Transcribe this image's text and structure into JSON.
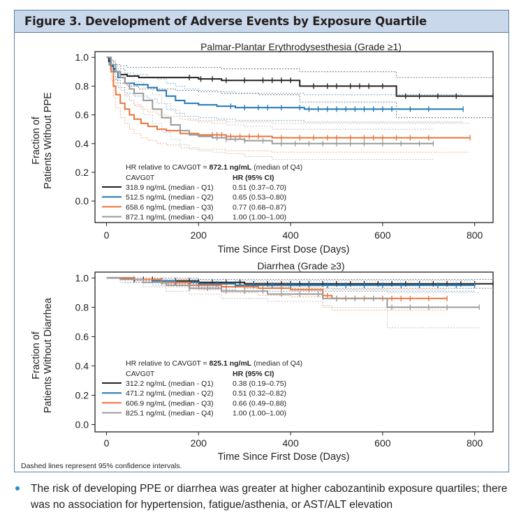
{
  "figure": {
    "title": "Figure 3. Development of Adverse Events by Exposure Quartile",
    "footnote": "Dashed lines represent 95% confidence intervals."
  },
  "summary": {
    "bullet": "The risk of developing PPE or diarrhea was greater at higher cabozantinib exposure quartiles; there was no association for hypertension, fatigue/asthenia, or AST/ALT elevation"
  },
  "colors": {
    "Q1": "#231f20",
    "Q2": "#1f77b4",
    "Q3": "#e8743b",
    "Q4": "#9a9a9a",
    "header_bg": "#c9d8ea",
    "bullet": "#1f8fce"
  },
  "chart_data": [
    {
      "type": "line",
      "title": "Palmar-Plantar Erythrodysesthesia (Grade ≥1)",
      "xlabel": "Time Since First Dose (Days)",
      "ylabel": "Fraction of Patients Without PPE",
      "xlim": [
        -25,
        840
      ],
      "ylim": [
        -0.15,
        1.04
      ],
      "xticks": [
        0,
        200,
        400,
        600,
        800
      ],
      "yticks": [
        0.0,
        0.2,
        0.4,
        0.6,
        0.8,
        1.0
      ],
      "grid": false,
      "legend": {
        "placement": "bottom-left",
        "ref_prefix": "HR relative to CAVG0T = ",
        "ref_value": "872.1 ng/mL",
        "ref_suffix": " (median of Q4)",
        "col1_header": "CAVG0T",
        "col2_header": "HR (95% CI)"
      },
      "series": [
        {
          "key": "Q1",
          "name": "318.9 ng/mL (median - Q1)",
          "hr": "0.51 (0.37–0.70)",
          "x": [
            0,
            5,
            10,
            15,
            20,
            30,
            45,
            70,
            100,
            150,
            200,
            250,
            330,
            400,
            420,
            630,
            840
          ],
          "y": [
            1.0,
            0.97,
            0.94,
            0.92,
            0.9,
            0.88,
            0.87,
            0.86,
            0.86,
            0.86,
            0.85,
            0.84,
            0.84,
            0.84,
            0.8,
            0.73,
            0.73
          ],
          "lo": [
            1.0,
            0.94,
            0.9,
            0.87,
            0.84,
            0.82,
            0.8,
            0.78,
            0.78,
            0.77,
            0.76,
            0.75,
            0.74,
            0.74,
            0.69,
            0.58,
            0.58
          ],
          "hi": [
            1.0,
            0.99,
            0.98,
            0.97,
            0.95,
            0.94,
            0.93,
            0.93,
            0.93,
            0.93,
            0.93,
            0.92,
            0.92,
            0.92,
            0.9,
            0.86,
            0.86
          ],
          "censor_x": [
            180,
            205,
            230,
            260,
            300,
            340,
            360,
            380,
            400,
            450,
            480,
            500,
            530,
            550,
            570,
            600,
            650,
            680,
            720,
            760,
            840
          ]
        },
        {
          "key": "Q2",
          "name": "512.5 ng/mL (median - Q2)",
          "hr": "0.65 (0.53–0.80)",
          "x": [
            0,
            8,
            15,
            25,
            40,
            60,
            90,
            110,
            130,
            150,
            170,
            200,
            240,
            280,
            430,
            775
          ],
          "y": [
            1.0,
            0.95,
            0.9,
            0.86,
            0.82,
            0.81,
            0.79,
            0.77,
            0.73,
            0.7,
            0.68,
            0.67,
            0.66,
            0.65,
            0.64,
            0.64
          ],
          "lo": [
            1.0,
            0.91,
            0.85,
            0.79,
            0.75,
            0.73,
            0.71,
            0.68,
            0.64,
            0.61,
            0.59,
            0.58,
            0.57,
            0.56,
            0.55,
            0.55
          ],
          "hi": [
            1.0,
            0.98,
            0.95,
            0.92,
            0.89,
            0.88,
            0.86,
            0.85,
            0.82,
            0.8,
            0.78,
            0.77,
            0.76,
            0.75,
            0.74,
            0.74
          ],
          "censor_x": [
            270,
            300,
            330,
            350,
            380,
            420,
            440,
            460,
            480,
            500,
            520,
            540,
            560,
            580,
            600,
            620,
            660,
            700,
            775
          ]
        },
        {
          "key": "Q3",
          "name": "658.6 ng/mL (median - Q3)",
          "hr": "0.77 (0.68–0.87)",
          "x": [
            0,
            10,
            15,
            20,
            30,
            40,
            50,
            60,
            75,
            90,
            110,
            130,
            160,
            200,
            260,
            300,
            360,
            790
          ],
          "y": [
            1.0,
            0.9,
            0.8,
            0.74,
            0.68,
            0.64,
            0.6,
            0.57,
            0.54,
            0.52,
            0.5,
            0.49,
            0.47,
            0.46,
            0.45,
            0.45,
            0.44,
            0.44
          ],
          "lo": [
            1.0,
            0.84,
            0.72,
            0.65,
            0.58,
            0.54,
            0.5,
            0.47,
            0.44,
            0.42,
            0.4,
            0.39,
            0.37,
            0.36,
            0.35,
            0.35,
            0.34,
            0.34
          ],
          "hi": [
            1.0,
            0.95,
            0.87,
            0.82,
            0.77,
            0.73,
            0.7,
            0.67,
            0.64,
            0.62,
            0.6,
            0.59,
            0.57,
            0.56,
            0.55,
            0.55,
            0.54,
            0.54
          ],
          "censor_x": [
            230,
            240,
            250,
            270,
            290,
            310,
            330,
            380,
            420,
            450,
            480,
            500,
            530,
            560,
            580,
            600,
            630,
            660,
            700,
            790
          ]
        },
        {
          "key": "Q4",
          "name": "872.1 ng/mL (median - Q4)",
          "hr": "1.00 (1.00–1.00)",
          "x": [
            0,
            10,
            20,
            30,
            40,
            50,
            60,
            80,
            100,
            120,
            140,
            160,
            180,
            200,
            230,
            260,
            300,
            360,
            710
          ],
          "y": [
            1.0,
            0.95,
            0.9,
            0.86,
            0.82,
            0.78,
            0.75,
            0.7,
            0.64,
            0.58,
            0.53,
            0.49,
            0.46,
            0.45,
            0.44,
            0.43,
            0.42,
            0.4,
            0.4
          ],
          "lo": [
            1.0,
            0.91,
            0.84,
            0.79,
            0.74,
            0.7,
            0.66,
            0.6,
            0.54,
            0.48,
            0.43,
            0.39,
            0.36,
            0.35,
            0.34,
            0.33,
            0.31,
            0.29,
            0.29
          ],
          "hi": [
            1.0,
            0.98,
            0.95,
            0.92,
            0.89,
            0.86,
            0.83,
            0.79,
            0.74,
            0.68,
            0.63,
            0.59,
            0.56,
            0.55,
            0.54,
            0.53,
            0.52,
            0.5,
            0.5
          ],
          "censor_x": [
            240,
            260,
            280,
            300,
            340,
            380,
            410,
            440,
            470,
            500,
            530,
            560,
            600,
            640,
            680,
            710
          ]
        }
      ]
    },
    {
      "type": "line",
      "title": "Diarrhea (Grade ≥3)",
      "xlabel": "Time Since First Dose (Days)",
      "ylabel": "Fraction of Patients Without Diarrhea",
      "xlim": [
        -25,
        840
      ],
      "ylim": [
        -0.05,
        1.04
      ],
      "xticks": [
        0,
        200,
        400,
        600,
        800
      ],
      "yticks": [
        0.0,
        0.2,
        0.4,
        0.6,
        0.8,
        1.0
      ],
      "grid": false,
      "legend": {
        "placement": "bottom-left",
        "ref_prefix": "HR relative to CAVG0T = ",
        "ref_value": "825.1 ng/mL",
        "ref_suffix": " (median of Q4)",
        "col1_header": "CAVG0T",
        "col2_header": "HR (95% CI)"
      },
      "series": [
        {
          "key": "Q1",
          "name": "312.2 ng/mL (median - Q1)",
          "hr": "0.38 (0.19–0.75)",
          "x": [
            0,
            60,
            120,
            200,
            300,
            840
          ],
          "y": [
            1.0,
            0.99,
            0.98,
            0.97,
            0.96,
            0.96
          ],
          "lo": [
            1.0,
            0.98,
            0.96,
            0.94,
            0.93,
            0.93
          ],
          "hi": [
            1.0,
            1.0,
            1.0,
            0.99,
            0.99,
            0.99
          ],
          "censor_x": [
            60,
            80,
            100,
            120,
            150,
            180,
            200,
            230,
            260,
            290,
            320,
            350,
            380,
            400,
            420,
            440,
            470,
            500,
            530,
            560,
            590,
            620,
            650,
            680,
            710,
            740,
            770,
            800,
            840
          ]
        },
        {
          "key": "Q2",
          "name": "471.2 ng/mL (median - Q2)",
          "hr": "0.51 (0.32–0.82)",
          "x": [
            0,
            40,
            100,
            150,
            200,
            280,
            800
          ],
          "y": [
            1.0,
            0.99,
            0.98,
            0.97,
            0.96,
            0.95,
            0.95
          ],
          "lo": [
            1.0,
            0.97,
            0.95,
            0.94,
            0.92,
            0.91,
            0.91
          ],
          "hi": [
            1.0,
            1.0,
            1.0,
            0.99,
            0.99,
            0.98,
            0.98
          ],
          "censor_x": [
            150,
            200,
            240,
            280,
            320,
            360,
            400,
            440,
            480,
            520,
            560,
            600,
            640,
            680,
            720,
            760,
            800
          ]
        },
        {
          "key": "Q3",
          "name": "606.9 ng/mL (median - Q3)",
          "hr": "0.66 (0.49–0.88)",
          "x": [
            0,
            60,
            120,
            180,
            250,
            330,
            400,
            470,
            490,
            740
          ],
          "y": [
            1.0,
            0.99,
            0.97,
            0.95,
            0.94,
            0.93,
            0.92,
            0.88,
            0.86,
            0.86
          ],
          "lo": [
            1.0,
            0.97,
            0.94,
            0.92,
            0.9,
            0.88,
            0.87,
            0.81,
            0.78,
            0.78
          ],
          "hi": [
            1.0,
            1.0,
            0.99,
            0.98,
            0.97,
            0.97,
            0.96,
            0.93,
            0.92,
            0.92
          ],
          "censor_x": [
            260,
            300,
            340,
            380,
            440,
            480,
            500,
            520,
            540,
            560,
            580,
            600,
            620,
            640,
            660,
            700,
            740
          ]
        },
        {
          "key": "Q4",
          "name": "825.1 ng/mL (median - Q4)",
          "hr": "1.00 (1.00–1.00)",
          "x": [
            0,
            30,
            80,
            130,
            180,
            250,
            350,
            470,
            610,
            810
          ],
          "y": [
            1.0,
            0.99,
            0.97,
            0.95,
            0.93,
            0.91,
            0.89,
            0.86,
            0.8,
            0.8
          ],
          "lo": [
            1.0,
            0.97,
            0.94,
            0.91,
            0.89,
            0.86,
            0.84,
            0.8,
            0.66,
            0.66
          ],
          "hi": [
            1.0,
            1.0,
            0.99,
            0.98,
            0.97,
            0.96,
            0.94,
            0.92,
            0.9,
            0.9
          ],
          "censor_x": [
            180,
            220,
            260,
            300,
            340,
            380,
            420,
            460,
            500,
            540,
            580,
            620,
            660,
            700,
            740,
            810
          ]
        }
      ]
    }
  ]
}
